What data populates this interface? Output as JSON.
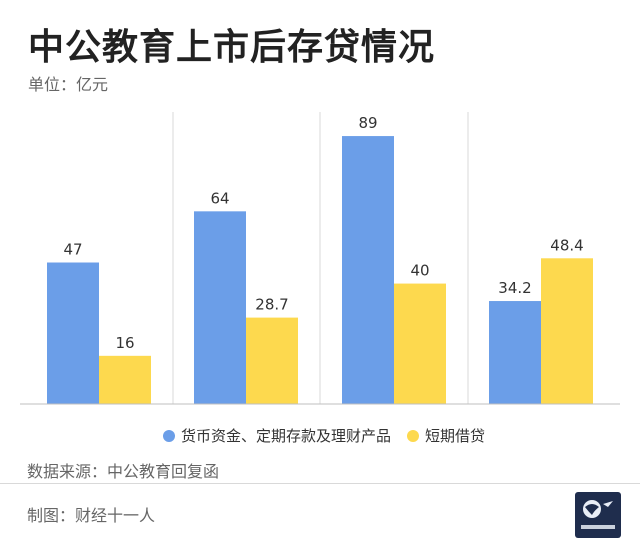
{
  "header": {
    "title": "中公教育上市后存贷情况",
    "unit": "单位：亿元"
  },
  "footer": {
    "source": "数据来源：中公教育回复函",
    "credit": "制图：财经十一人",
    "logo_text": "财经十一人"
  },
  "chart_data": {
    "type": "bar",
    "categories": [
      "",
      "",
      "",
      ""
    ],
    "series": [
      {
        "name": "货币资金、定期存款及理财产品",
        "values": [
          47,
          64,
          89,
          34.2
        ],
        "labels": [
          "47",
          "64",
          "89",
          "34.2"
        ],
        "color": "#6b9ee8"
      },
      {
        "name": "短期借贷",
        "values": [
          16,
          28.7,
          40,
          48.4
        ],
        "labels": [
          "16",
          "28.7",
          "40",
          "48.4"
        ],
        "color": "#fdd94e"
      }
    ],
    "ylim": [
      0,
      95
    ],
    "grid": false,
    "separators": true,
    "legend_position": "bottom",
    "title": "",
    "xlabel": "",
    "ylabel": ""
  }
}
